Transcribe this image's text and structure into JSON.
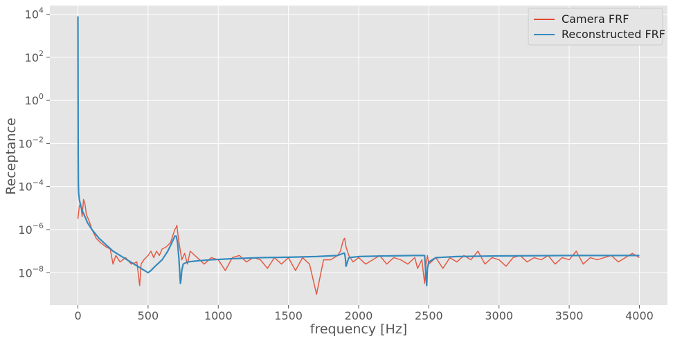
{
  "chart_data": {
    "type": "line",
    "title": "",
    "xlabel": "frequency [Hz]",
    "ylabel": "Receptance",
    "xlim": [
      -200,
      4200
    ],
    "ylim_log10": [
      -9.5,
      4.4
    ],
    "yscale": "log",
    "grid": true,
    "legend": "top-right",
    "x_ticks": [
      {
        "value": 0,
        "label": "0"
      },
      {
        "value": 500,
        "label": "500"
      },
      {
        "value": 1000,
        "label": "1000"
      },
      {
        "value": 1500,
        "label": "1500"
      },
      {
        "value": 2000,
        "label": "2000"
      },
      {
        "value": 2500,
        "label": "2500"
      },
      {
        "value": 3000,
        "label": "3000"
      },
      {
        "value": 3500,
        "label": "3500"
      },
      {
        "value": 4000,
        "label": "4000"
      }
    ],
    "y_ticks": [
      {
        "exp": 4,
        "base": "10",
        "sup": "4"
      },
      {
        "exp": 2,
        "base": "10",
        "sup": "2"
      },
      {
        "exp": 0,
        "base": "10",
        "sup": "0"
      },
      {
        "exp": -2,
        "base": "10",
        "sup": "−2"
      },
      {
        "exp": -4,
        "base": "10",
        "sup": "−4"
      },
      {
        "exp": -6,
        "base": "10",
        "sup": "−6"
      },
      {
        "exp": -8,
        "base": "10",
        "sup": "−8"
      }
    ],
    "series": [
      {
        "name": "Camera FRF",
        "color": "#E24A33",
        "x": [
          0,
          10,
          20,
          30,
          40,
          50,
          60,
          80,
          100,
          130,
          160,
          200,
          230,
          250,
          270,
          300,
          340,
          380,
          420,
          440,
          450,
          470,
          500,
          520,
          540,
          560,
          580,
          600,
          630,
          660,
          680,
          690,
          700,
          705,
          710,
          720,
          730,
          740,
          760,
          780,
          800,
          850,
          900,
          950,
          1000,
          1050,
          1100,
          1150,
          1200,
          1250,
          1300,
          1350,
          1400,
          1450,
          1500,
          1550,
          1600,
          1650,
          1700,
          1750,
          1800,
          1850,
          1870,
          1890,
          1900,
          1910,
          1930,
          1960,
          2000,
          2050,
          2100,
          2150,
          2200,
          2250,
          2300,
          2350,
          2400,
          2420,
          2450,
          2470,
          2480,
          2490,
          2500,
          2550,
          2600,
          2650,
          2700,
          2750,
          2800,
          2850,
          2900,
          2950,
          3000,
          3050,
          3100,
          3150,
          3200,
          3250,
          3300,
          3350,
          3400,
          3450,
          3500,
          3550,
          3600,
          3650,
          3700,
          3750,
          3800,
          3850,
          3900,
          3950,
          4000
        ],
        "log10_y": [
          -5.5,
          -4.9,
          -4.8,
          -5.4,
          -4.6,
          -4.8,
          -5.3,
          -5.6,
          -6.0,
          -6.4,
          -6.6,
          -6.8,
          -6.9,
          -7.6,
          -7.2,
          -7.5,
          -7.3,
          -7.6,
          -7.5,
          -8.6,
          -7.6,
          -7.4,
          -7.2,
          -7.0,
          -7.3,
          -7.0,
          -7.2,
          -6.9,
          -6.8,
          -6.6,
          -6.2,
          -6.0,
          -5.9,
          -5.8,
          -6.1,
          -6.6,
          -7.0,
          -7.4,
          -7.1,
          -7.6,
          -7.0,
          -7.3,
          -7.6,
          -7.3,
          -7.4,
          -7.9,
          -7.3,
          -7.2,
          -7.5,
          -7.3,
          -7.4,
          -7.8,
          -7.3,
          -7.6,
          -7.3,
          -7.9,
          -7.3,
          -7.6,
          -9.0,
          -7.4,
          -7.4,
          -7.2,
          -7.0,
          -6.5,
          -6.4,
          -6.8,
          -7.2,
          -7.5,
          -7.3,
          -7.6,
          -7.4,
          -7.2,
          -7.6,
          -7.3,
          -7.4,
          -7.6,
          -7.3,
          -7.8,
          -7.4,
          -8.5,
          -7.6,
          -7.2,
          -7.6,
          -7.3,
          -7.8,
          -7.3,
          -7.5,
          -7.2,
          -7.4,
          -7.0,
          -7.6,
          -7.3,
          -7.4,
          -7.7,
          -7.3,
          -7.2,
          -7.5,
          -7.3,
          -7.4,
          -7.2,
          -7.6,
          -7.3,
          -7.4,
          -7.0,
          -7.6,
          -7.3,
          -7.4,
          -7.3,
          -7.2,
          -7.5,
          -7.3,
          -7.1,
          -7.3
        ]
      },
      {
        "name": "Reconstructed FRF",
        "color": "#348ABD",
        "x": [
          0,
          1,
          2,
          3,
          5,
          10,
          20,
          30,
          50,
          70,
          100,
          150,
          200,
          250,
          300,
          350,
          400,
          450,
          500,
          520,
          550,
          600,
          640,
          670,
          690,
          700,
          710,
          720,
          730,
          735,
          740,
          750,
          780,
          850,
          950,
          1100,
          1300,
          1500,
          1700,
          1850,
          1890,
          1900,
          1905,
          1910,
          1930,
          2000,
          2200,
          2400,
          2470,
          2480,
          2485,
          2490,
          2500,
          2550,
          2700,
          3000,
          3500,
          4000
        ],
        "log10_y": [
          3.9,
          0.5,
          -2.5,
          -3.8,
          -4.3,
          -4.6,
          -4.9,
          -5.1,
          -5.4,
          -5.7,
          -6.0,
          -6.4,
          -6.7,
          -7.0,
          -7.2,
          -7.4,
          -7.6,
          -7.8,
          -8.0,
          -7.9,
          -7.7,
          -7.4,
          -7.0,
          -6.6,
          -6.3,
          -6.3,
          -6.6,
          -7.4,
          -8.5,
          -8.3,
          -7.9,
          -7.6,
          -7.5,
          -7.45,
          -7.4,
          -7.35,
          -7.3,
          -7.28,
          -7.25,
          -7.2,
          -7.1,
          -7.1,
          -7.3,
          -7.7,
          -7.3,
          -7.25,
          -7.22,
          -7.2,
          -7.2,
          -8.2,
          -8.6,
          -7.8,
          -7.5,
          -7.3,
          -7.25,
          -7.22,
          -7.2,
          -7.2
        ]
      }
    ]
  }
}
